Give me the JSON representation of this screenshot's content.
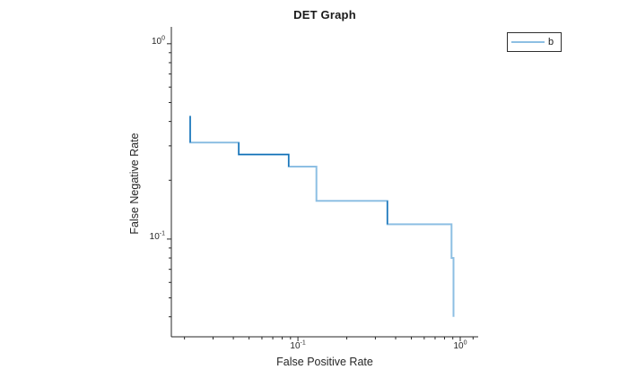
{
  "chart": {
    "title": "DET Graph",
    "xlabel": "False Positive Rate",
    "ylabel": "False Negative Rate"
  },
  "legend": {
    "entries": [
      {
        "label": "b"
      }
    ]
  },
  "colors": {
    "background": "#ffffff",
    "axis": "#262626",
    "text": "#262626",
    "line_light": "#8dbfe3",
    "line_dark": "#0d6eb5",
    "legend_border": "#2e2e2e"
  },
  "chart_data": {
    "type": "line",
    "style": "step-staircase",
    "x_scale": "log",
    "y_scale": "log",
    "grid": false,
    "legend_position": "outside-top-right",
    "title": "DET Graph",
    "xlabel": "False Positive Rate",
    "ylabel": "False Negative Rate",
    "xlim": [
      0.0166,
      1.29
    ],
    "ylim": [
      0.0316,
      1.22
    ],
    "x_major_ticks": [
      {
        "value": 0.1,
        "base": "10",
        "exp": "-1"
      },
      {
        "value": 1.0,
        "base": "10",
        "exp": "0"
      }
    ],
    "y_major_ticks": [
      {
        "value": 1.0,
        "base": "10",
        "exp": "0"
      },
      {
        "value": 0.1,
        "base": "10",
        "exp": "-1"
      }
    ],
    "x_minor_ticks": [
      0.02,
      0.03,
      0.04,
      0.05,
      0.06,
      0.07,
      0.08,
      0.09,
      0.2,
      0.3,
      0.4,
      0.5,
      0.6,
      0.7,
      0.8,
      0.9,
      1.2
    ],
    "y_minor_ticks": [
      0.04,
      0.05,
      0.06,
      0.07,
      0.08,
      0.09,
      0.2,
      0.3,
      0.4,
      0.5,
      0.6,
      0.7,
      0.8,
      0.9
    ],
    "series": [
      {
        "name": "b",
        "points": [
          [
            0.0217,
            0.427
          ],
          [
            0.0217,
            0.312
          ],
          [
            0.0432,
            0.312
          ],
          [
            0.0432,
            0.271
          ],
          [
            0.0877,
            0.271
          ],
          [
            0.0877,
            0.235
          ],
          [
            0.13,
            0.235
          ],
          [
            0.13,
            0.157
          ],
          [
            0.356,
            0.157
          ],
          [
            0.356,
            0.119
          ],
          [
            0.884,
            0.119
          ],
          [
            0.884,
            0.08
          ],
          [
            0.909,
            0.08
          ],
          [
            0.909,
            0.04
          ]
        ],
        "dark_segments": [
          [
            0,
            1
          ],
          [
            2,
            5
          ],
          [
            8,
            9
          ]
        ]
      }
    ]
  }
}
